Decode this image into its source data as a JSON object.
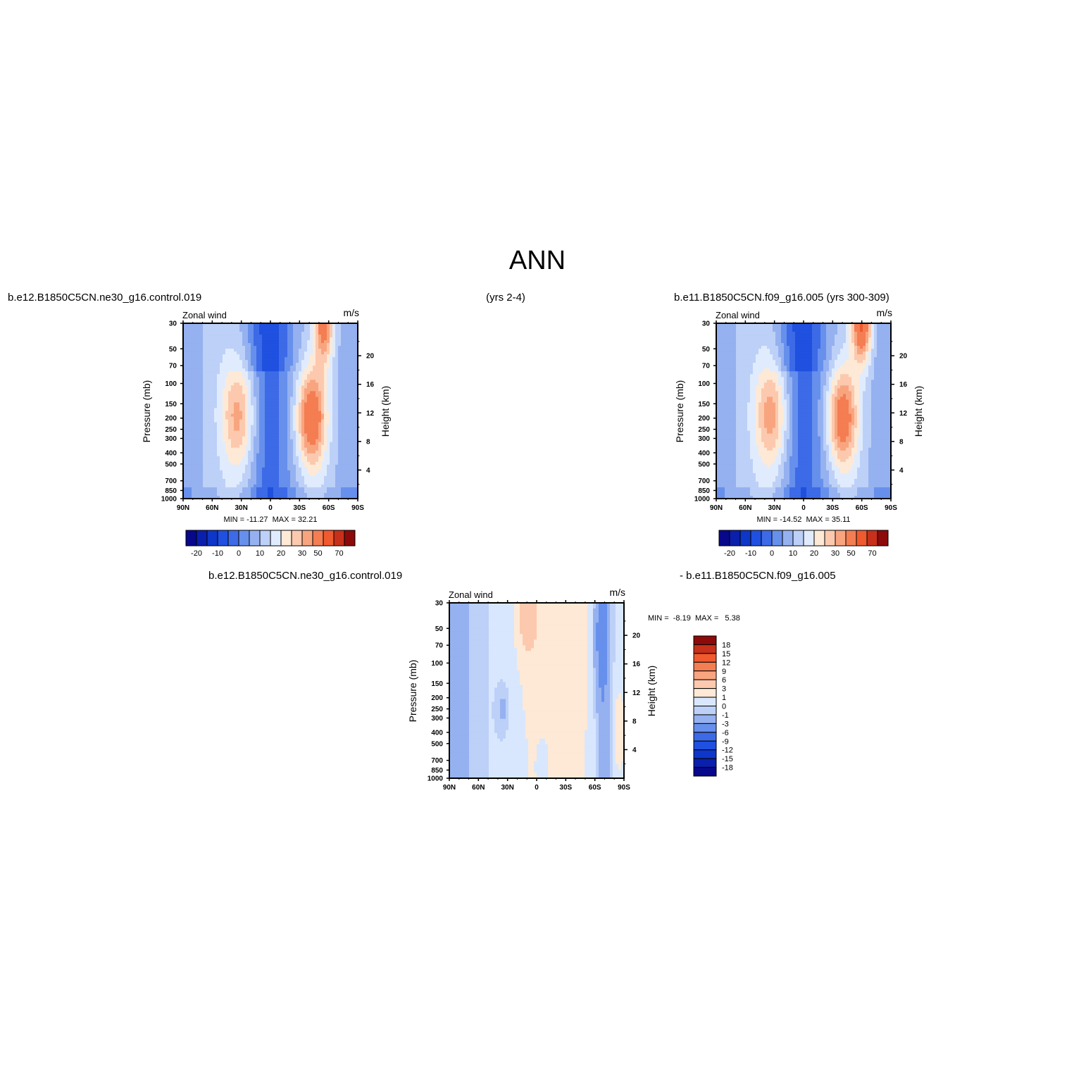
{
  "page": {
    "title": "ANN",
    "top_left_label": "b.e12.B1850C5CN.ne30_g16.control.019",
    "top_mid_label": "(yrs 2-4)",
    "top_right_label": "b.e11.B1850C5CN.f09_g16.005 (yrs 300-309)",
    "bottom_left_label": "b.e12.B1850C5CN.ne30_g16.control.019",
    "bottom_right_label": "- b.e11.B1850C5CN.f09_g16.005"
  },
  "chart_data": [
    {
      "type": "heatmap",
      "panel": "case1",
      "variable_label": "Zonal wind",
      "units": "m/s",
      "ylabel": "Pressure (mb)",
      "y2label": "Height (km)",
      "x_ticks": [
        "90N",
        "60N",
        "30N",
        "0",
        "30S",
        "60S",
        "90S"
      ],
      "x_values": [
        90,
        60,
        30,
        0,
        -30,
        -60,
        -90
      ],
      "y_ticks": [
        30,
        50,
        70,
        100,
        150,
        200,
        250,
        300,
        400,
        500,
        700,
        850,
        1000
      ],
      "y2_ticks": [
        4,
        8,
        12,
        16,
        20
      ],
      "stats_text": "MIN = -11.27  MAX = 32.21",
      "min": -11.27,
      "max": 32.21,
      "colorbar_labels": [
        "-20",
        "-10",
        "0",
        "10",
        "20",
        "30",
        "50",
        "70"
      ],
      "colorbar_levels": [
        -30,
        -20,
        -15,
        -10,
        -5,
        0,
        5,
        10,
        15,
        20,
        25,
        30,
        40,
        50,
        60,
        70
      ],
      "jets": [
        {
          "lat": 33,
          "p": 190,
          "peak": 20
        },
        {
          "lat": -42,
          "p": 200,
          "peak": 32
        },
        {
          "lat": -55,
          "p": 30,
          "peak": 28
        }
      ]
    },
    {
      "type": "heatmap",
      "panel": "case2",
      "variable_label": "Zonal wind",
      "units": "m/s",
      "ylabel": "Pressure (mb)",
      "y2label": "Height (km)",
      "x_ticks": [
        "90N",
        "60N",
        "30N",
        "0",
        "30S",
        "60S",
        "90S"
      ],
      "x_values": [
        90,
        60,
        30,
        0,
        -30,
        -60,
        -90
      ],
      "y_ticks": [
        30,
        50,
        70,
        100,
        150,
        200,
        250,
        300,
        400,
        500,
        700,
        850,
        1000
      ],
      "y2_ticks": [
        4,
        8,
        12,
        16,
        20
      ],
      "stats_text": "MIN = -14.52  MAX = 35.11",
      "min": -14.52,
      "max": 35.11,
      "colorbar_labels": [
        "-20",
        "-10",
        "0",
        "10",
        "20",
        "30",
        "50",
        "70"
      ],
      "colorbar_levels": [
        -30,
        -20,
        -15,
        -10,
        -5,
        0,
        5,
        10,
        15,
        20,
        25,
        30,
        40,
        50,
        60,
        70
      ],
      "jets": [
        {
          "lat": 33,
          "p": 190,
          "peak": 21
        },
        {
          "lat": -40,
          "p": 200,
          "peak": 30
        },
        {
          "lat": -60,
          "p": 30,
          "peak": 35
        }
      ]
    },
    {
      "type": "heatmap",
      "panel": "difference",
      "variable_label": "Zonal wind",
      "units": "m/s",
      "ylabel": "Pressure (mb)",
      "y2label": "Height (km)",
      "x_ticks": [
        "90N",
        "60N",
        "30N",
        "0",
        "30S",
        "60S",
        "90S"
      ],
      "x_values": [
        90,
        60,
        30,
        0,
        -30,
        -60,
        -90
      ],
      "y_ticks": [
        30,
        50,
        70,
        100,
        150,
        200,
        250,
        300,
        400,
        500,
        700,
        850,
        1000
      ],
      "y2_ticks": [
        4,
        8,
        12,
        16,
        20
      ],
      "stats_text": "MIN =  -8.19  MAX =   5.38",
      "min": -8.19,
      "max": 5.38,
      "colorbar_labels": [
        "18",
        "15",
        "12",
        "9",
        "6",
        "3",
        "1",
        "0",
        "-1",
        "-3",
        "-6",
        "-9",
        "-12",
        "-15",
        "-18"
      ]
    }
  ],
  "colors": {
    "scale16": [
      "#08088b",
      "#0a1fab",
      "#0e36c8",
      "#1f50df",
      "#3d6ae6",
      "#6690ec",
      "#95b1f0",
      "#bdd0f7",
      "#e0ecfd",
      "#fde9d6",
      "#fcc9ae",
      "#f8a57f",
      "#f47d52",
      "#ef5a2e",
      "#c7301a",
      "#8c0a0a"
    ],
    "diff16": [
      "#08088b",
      "#0a1fab",
      "#0e36c8",
      "#1f50df",
      "#3d6ae6",
      "#6690ec",
      "#95b1f0",
      "#bdd0f7",
      "#d8e7fd",
      "#fde9d6",
      "#fcc9ae",
      "#f8a57f",
      "#f47d52",
      "#ef5a2e",
      "#c7301a",
      "#8c0a0a"
    ]
  }
}
